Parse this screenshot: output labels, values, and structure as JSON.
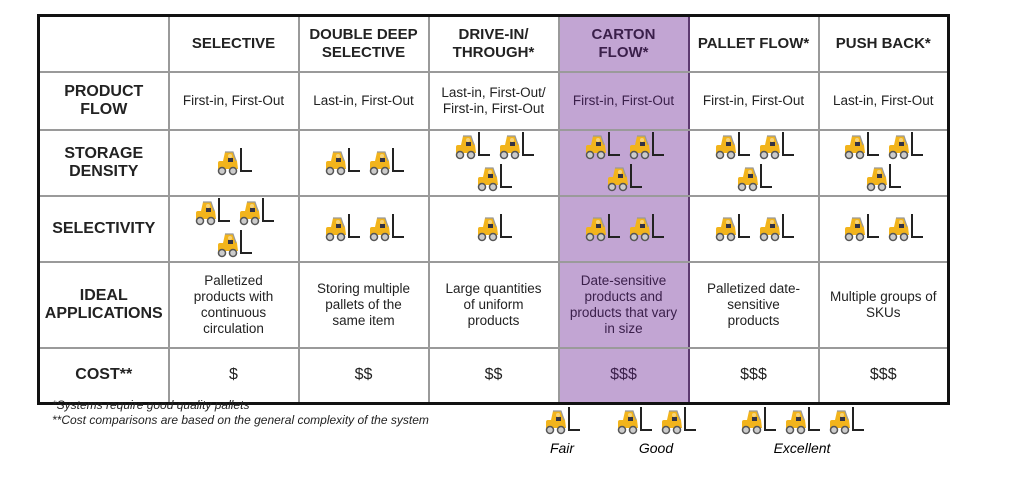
{
  "columns": [
    {
      "title": "SELECTIVE",
      "flow": "First-in, First-Out",
      "density": 1,
      "selectivity": 3,
      "applications": "Palletized products with continuous circulation",
      "cost": "$"
    },
    {
      "title": "DOUBLE DEEP SELECTIVE",
      "flow": "Last-in, First-Out",
      "density": 2,
      "selectivity": 2,
      "applications": "Storing multiple pallets of the same item",
      "cost": "$$"
    },
    {
      "title": "DRIVE-IN/ THROUGH*",
      "flow": "Last-in, First-Out/ First-in, First-Out",
      "density": 3,
      "selectivity": 1,
      "applications": "Large quantities of uniform products",
      "cost": "$$"
    },
    {
      "title": "CARTON FLOW*",
      "flow": "First-in, First-Out",
      "density": 3,
      "selectivity": 2,
      "applications": "Date-sensitive products and products that vary in size",
      "cost": "$$$",
      "highlighted": true
    },
    {
      "title": "PALLET FLOW*",
      "flow": "First-in, First-Out",
      "density": 3,
      "selectivity": 2,
      "applications": "Palletized date-sensitive products",
      "cost": "$$$"
    },
    {
      "title": "PUSH BACK*",
      "flow": "Last-in, First-Out",
      "density": 3,
      "selectivity": 2,
      "applications": "Multiple groups of SKUs",
      "cost": "$$$"
    }
  ],
  "rows": {
    "flow": "PRODUCT FLOW",
    "density": "STORAGE DENSITY",
    "selectivity": "SELECTIVITY",
    "applications": "IDEAL APPLICATIONS",
    "cost": "COST**"
  },
  "notes": [
    "*Systems require good quality pallets",
    "**Cost comparisons are based on the general complexity of the system"
  ],
  "legend": [
    {
      "label": "Fair",
      "count": 1
    },
    {
      "label": "Good",
      "count": 2
    },
    {
      "label": "Excellent",
      "count": 3
    }
  ],
  "colors": {
    "highlight": "#c2a5d3",
    "highlight_text": "#3a1f4a",
    "forklift": "#f2b41c"
  },
  "icon": "forklift-icon"
}
